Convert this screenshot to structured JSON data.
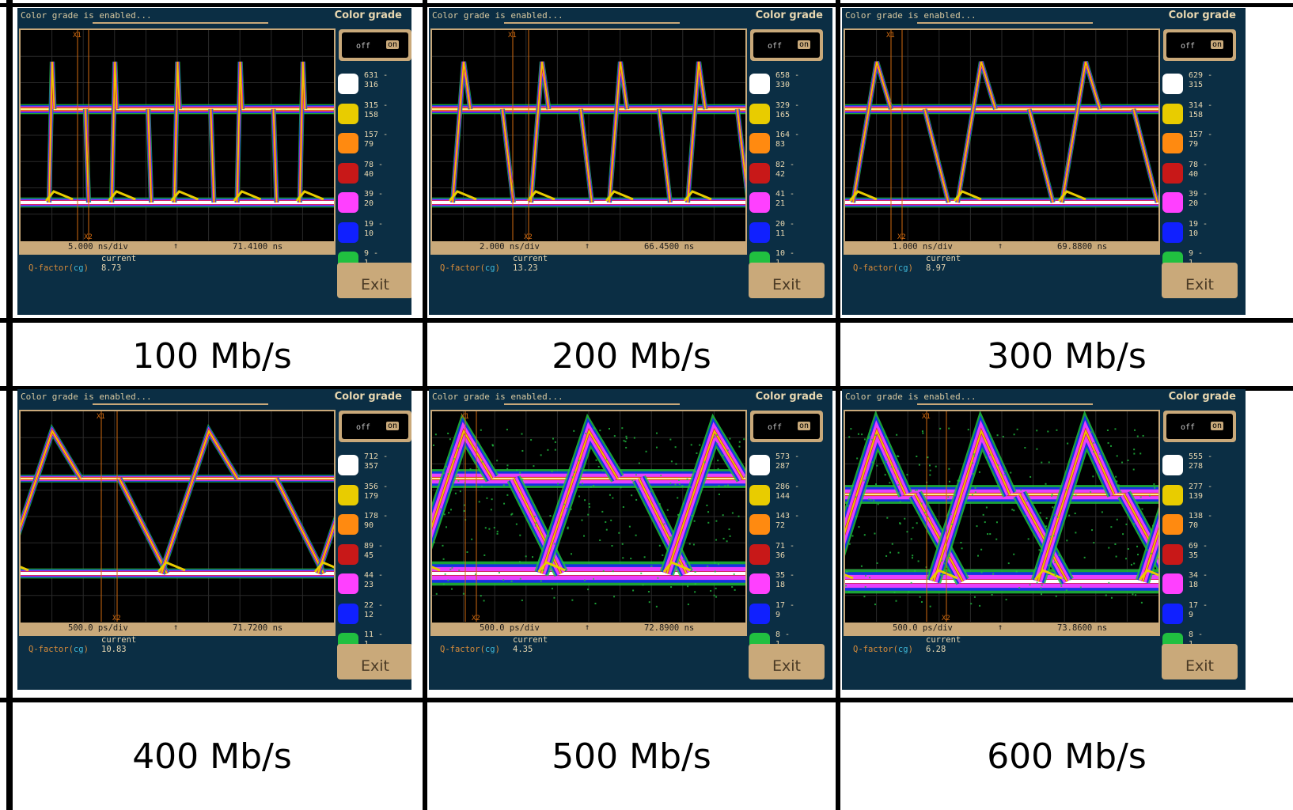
{
  "panels": [
    {
      "caption": "100 Mb/s",
      "status": "Color grade is enabled...",
      "color_grade_title": "Color grade",
      "toggle": {
        "off": "off",
        "on": "on"
      },
      "legend": [
        [
          "631",
          "316"
        ],
        [
          "315",
          "158"
        ],
        [
          "157",
          "79"
        ],
        [
          "78",
          "40"
        ],
        [
          "39",
          "20"
        ],
        [
          "19",
          "10"
        ],
        [
          "9",
          "1"
        ]
      ],
      "cursor1": "X1",
      "cursor2": "X2",
      "timebase": "5.000 ns/div",
      "arrow": "↑",
      "time": "71.4100 ns",
      "current_label": "current",
      "q_label": "Q-factor(",
      "q_cg": "cg",
      "q_close": ")",
      "q_value": "8.73",
      "exit": "Exit"
    },
    {
      "caption": "200 Mb/s",
      "status": "Color grade is enabled...",
      "color_grade_title": "Color grade",
      "toggle": {
        "off": "off",
        "on": "on"
      },
      "legend": [
        [
          "658",
          "330"
        ],
        [
          "329",
          "165"
        ],
        [
          "164",
          "83"
        ],
        [
          "82",
          "42"
        ],
        [
          "41",
          "21"
        ],
        [
          "20",
          "11"
        ],
        [
          "10",
          "1"
        ]
      ],
      "cursor1": "X1",
      "cursor2": "X2",
      "timebase": "2.000 ns/div",
      "arrow": "↑",
      "time": "66.4500 ns",
      "current_label": "current",
      "q_label": "Q-factor(",
      "q_cg": "cg",
      "q_close": ")",
      "q_value": "13.23",
      "exit": "Exit"
    },
    {
      "caption": "300 Mb/s",
      "status": "Color grade is enabled...",
      "color_grade_title": "Color grade",
      "toggle": {
        "off": "off",
        "on": "on"
      },
      "legend": [
        [
          "629",
          "315"
        ],
        [
          "314",
          "158"
        ],
        [
          "157",
          "79"
        ],
        [
          "78",
          "40"
        ],
        [
          "39",
          "20"
        ],
        [
          "19",
          "10"
        ],
        [
          "9",
          "1"
        ]
      ],
      "cursor1": "X1",
      "cursor2": "X2",
      "timebase": "1.000 ns/div",
      "arrow": "↑",
      "time": "69.8800 ns",
      "current_label": "current",
      "q_label": "Q-factor(",
      "q_cg": "cg",
      "q_close": ")",
      "q_value": "8.97",
      "exit": "Exit"
    },
    {
      "caption": "400 Mb/s",
      "status": "Color grade is enabled...",
      "color_grade_title": "Color grade",
      "toggle": {
        "off": "off",
        "on": "on"
      },
      "legend": [
        [
          "712",
          "357"
        ],
        [
          "356",
          "179"
        ],
        [
          "178",
          "90"
        ],
        [
          "89",
          "45"
        ],
        [
          "44",
          "23"
        ],
        [
          "22",
          "12"
        ],
        [
          "11",
          "1"
        ]
      ],
      "cursor1": "X1",
      "cursor2": "X2",
      "timebase": "500.0 ps/div",
      "arrow": "↑",
      "time": "71.7200 ns",
      "current_label": "current",
      "q_label": "Q-factor(",
      "q_cg": "cg",
      "q_close": ")",
      "q_value": "10.83",
      "exit": "Exit"
    },
    {
      "caption": "500 Mb/s",
      "status": "Color grade is enabled...",
      "color_grade_title": "Color grade",
      "toggle": {
        "off": "off",
        "on": "on"
      },
      "legend": [
        [
          "573",
          "287"
        ],
        [
          "286",
          "144"
        ],
        [
          "143",
          "72"
        ],
        [
          "71",
          "36"
        ],
        [
          "35",
          "18"
        ],
        [
          "17",
          "9"
        ],
        [
          "8",
          "1"
        ]
      ],
      "cursor1": "X1",
      "cursor2": "X2",
      "timebase": "500.0 ps/div",
      "arrow": "↑",
      "time": "72.8900 ns",
      "current_label": "current",
      "q_label": "Q-factor(",
      "q_cg": "cg",
      "q_close": ")",
      "q_value": "4.35",
      "exit": "Exit"
    },
    {
      "caption": "600 Mb/s",
      "status": "Color grade is enabled...",
      "color_grade_title": "Color grade",
      "toggle": {
        "off": "off",
        "on": "on"
      },
      "legend": [
        [
          "555",
          "278"
        ],
        [
          "277",
          "139"
        ],
        [
          "138",
          "70"
        ],
        [
          "69",
          "35"
        ],
        [
          "34",
          "18"
        ],
        [
          "17",
          "9"
        ],
        [
          "8",
          "1"
        ]
      ],
      "cursor1": "X1",
      "cursor2": "X2",
      "timebase": "500.0 ps/div",
      "arrow": "↑",
      "time": "73.8600 ns",
      "current_label": "current",
      "q_label": "Q-factor(",
      "q_cg": "cg",
      "q_close": ")",
      "q_value": "6.28",
      "exit": "Exit"
    }
  ],
  "legend_colors": [
    "#ffffff",
    "#e8cc00",
    "#ff8a10",
    "#c81818",
    "#ff40ff",
    "#1020ff",
    "#20c040"
  ],
  "chart_data": [
    {
      "type": "scatter",
      "title": "100 Mb/s",
      "bit_periods_per_screen": 5,
      "q_factor": 8.73
    },
    {
      "type": "scatter",
      "title": "200 Mb/s",
      "bit_periods_per_screen": 4,
      "q_factor": 13.23
    },
    {
      "type": "scatter",
      "title": "300 Mb/s",
      "bit_periods_per_screen": 3,
      "q_factor": 8.97
    },
    {
      "type": "scatter",
      "title": "400 Mb/s",
      "bit_periods_per_screen": 2,
      "q_factor": 10.83
    },
    {
      "type": "scatter",
      "title": "500 Mb/s",
      "bit_periods_per_screen": 2.5,
      "q_factor": 4.35
    },
    {
      "type": "scatter",
      "title": "600 Mb/s",
      "bit_periods_per_screen": 3,
      "q_factor": 6.28
    }
  ]
}
